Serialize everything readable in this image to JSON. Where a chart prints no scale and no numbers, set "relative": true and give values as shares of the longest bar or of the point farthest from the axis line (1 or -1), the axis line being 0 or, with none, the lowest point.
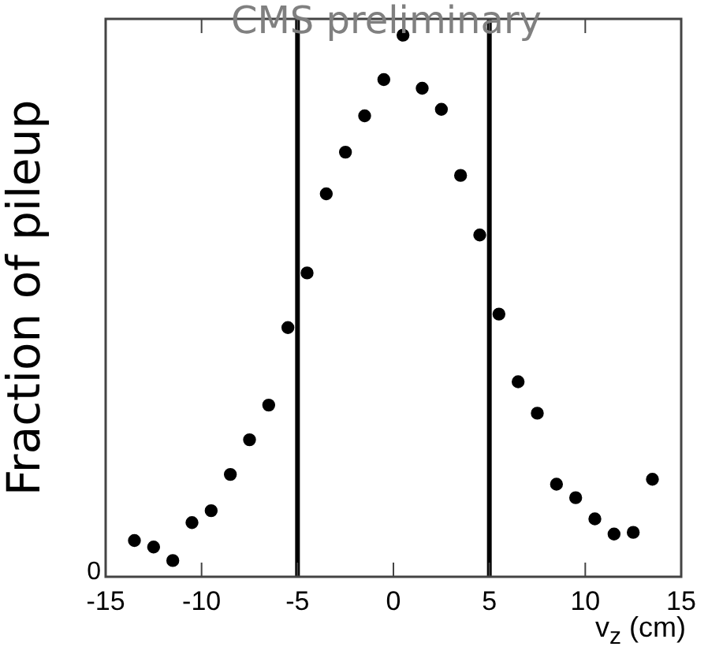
{
  "chart_data": {
    "type": "scatter",
    "title": "CMS preliminary",
    "xlabel": "v$_{z}$ (cm)",
    "ylabel": "Fraction of pileup",
    "relative": true,
    "marker": "circle",
    "grid": false,
    "legend": false,
    "x": [
      -13.5,
      -12.5,
      -11.5,
      -10.5,
      -9.5,
      -8.5,
      -7.5,
      -6.5,
      -5.5,
      -4.5,
      -3.5,
      -2.5,
      -1.5,
      -0.5,
      0.5,
      1.5,
      2.5,
      3.5,
      4.5,
      5.5,
      6.5,
      7.5,
      8.5,
      9.5,
      10.5,
      11.5,
      12.5,
      13.5
    ],
    "xlim": [
      -15,
      15
    ],
    "xticks": [
      -15,
      -10,
      -5,
      0,
      5,
      10,
      15
    ],
    "series": [
      {
        "color": "#000000",
        "values": [
          0.067,
          0.055,
          0.03,
          0.1,
          0.122,
          0.189,
          0.253,
          0.317,
          0.46,
          0.561,
          0.707,
          0.784,
          0.851,
          0.918,
          1,
          0.902,
          0.863,
          0.741,
          0.631,
          0.485,
          0.36,
          0.302,
          0.171,
          0.146,
          0.107,
          0.079,
          0.082,
          0.18
        ]
      }
    ],
    "ref_lines": [
      {
        "axis": "x",
        "value": -5,
        "color": "#000000"
      },
      {
        "axis": "x",
        "value": 5,
        "color": "#000000"
      }
    ],
    "annotations": [
      "0"
    ]
  }
}
